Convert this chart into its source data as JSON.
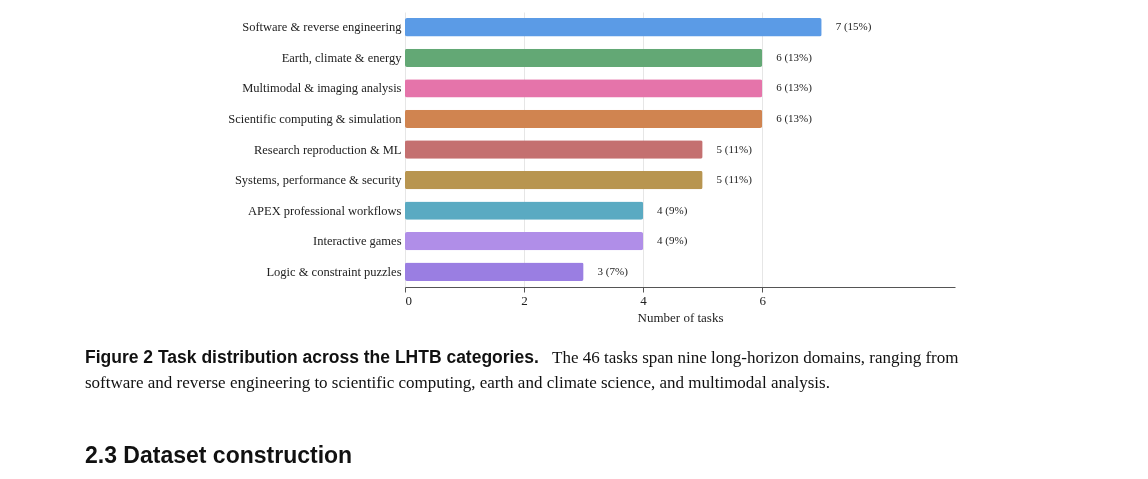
{
  "chart_data": {
    "type": "bar",
    "orientation": "horizontal",
    "categories": [
      "Software & reverse engineering",
      "Earth, climate & energy",
      "Multimodal & imaging analysis",
      "Scientific computing & simulation",
      "Research reproduction & ML",
      "Systems, performance & security",
      "APEX professional workflows",
      "Interactive games",
      "Logic & constraint puzzles"
    ],
    "values": [
      7,
      6,
      6,
      6,
      5,
      5,
      4,
      4,
      3
    ],
    "value_labels": [
      "7  (15%)",
      "6  (13%)",
      "6  (13%)",
      "6  (13%)",
      "5  (11%)",
      "5  (11%)",
      "4  (9%)",
      "4  (9%)",
      "3  (7%)"
    ],
    "colors": [
      "#5b9be6",
      "#63a875",
      "#e574aa",
      "#d08450",
      "#c47070",
      "#b89550",
      "#5aaac2",
      "#b08ee8",
      "#9a7ee2"
    ],
    "xlim": [
      0,
      9.24
    ],
    "xticks": [
      0,
      2,
      4,
      6
    ],
    "xlabel": "Number of tasks",
    "grid": "x",
    "annotations": [
      "Figure 2  Task distribution across the LHTB categories.",
      "The 46 tasks span nine long-horizon domains, ranging from",
      "software and reverse engineering to scientific computing, earth and climate science, and multimodal analysis.",
      "2.3   Dataset construction"
    ]
  }
}
